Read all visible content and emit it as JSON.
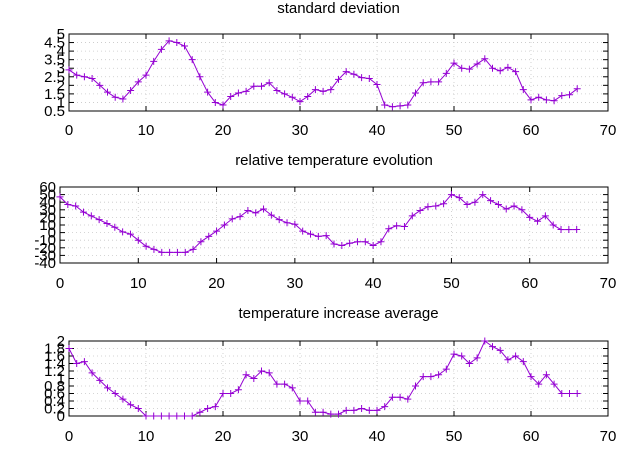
{
  "chart_data": [
    {
      "type": "line",
      "title": "standard deviation",
      "xlabel": "",
      "ylabel": "",
      "xlim": [
        0,
        70
      ],
      "ylim": [
        0.5,
        5
      ],
      "xticks": [
        0,
        10,
        20,
        30,
        40,
        50,
        60,
        70
      ],
      "yticks": [
        0.5,
        1,
        1.5,
        2,
        2.5,
        3,
        3.5,
        4,
        4.5,
        5
      ],
      "grid": true,
      "marker": "plus",
      "color": "#9400d3",
      "x": [
        0,
        1,
        2,
        3,
        4,
        5,
        6,
        7,
        8,
        9,
        10,
        11,
        12,
        13,
        14,
        15,
        16,
        17,
        18,
        19,
        20,
        21,
        22,
        23,
        24,
        25,
        26,
        27,
        28,
        29,
        30,
        31,
        32,
        33,
        34,
        35,
        36,
        37,
        38,
        39,
        40,
        41,
        42,
        43,
        44,
        45,
        46,
        47,
        48,
        49,
        50,
        51,
        52,
        53,
        54,
        55,
        56,
        57,
        58,
        59,
        60,
        61,
        62,
        63,
        64,
        65,
        66
      ],
      "series": [
        {
          "values": [
            2.9,
            2.6,
            2.5,
            2.4,
            2.0,
            1.6,
            1.3,
            1.2,
            1.7,
            2.2,
            2.6,
            3.4,
            4.1,
            4.6,
            4.5,
            4.3,
            3.5,
            2.5,
            1.6,
            1.0,
            0.85,
            1.35,
            1.55,
            1.65,
            1.95,
            1.95,
            2.15,
            1.7,
            1.5,
            1.3,
            1.05,
            1.35,
            1.75,
            1.65,
            1.75,
            2.35,
            2.8,
            2.65,
            2.45,
            2.4,
            2.05,
            0.85,
            0.75,
            0.8,
            0.85,
            1.55,
            2.15,
            2.2,
            2.2,
            2.7,
            3.3,
            3.0,
            2.95,
            3.25,
            3.55,
            3.0,
            2.85,
            3.05,
            2.8,
            1.75,
            1.15,
            1.3,
            1.15,
            1.1,
            1.4,
            1.45,
            1.8
          ]
        }
      ]
    },
    {
      "type": "line",
      "title": "relative temperature evolution",
      "xlabel": "",
      "ylabel": "",
      "xlim": [
        0,
        70
      ],
      "ylim": [
        -40,
        60
      ],
      "xticks": [
        0,
        10,
        20,
        30,
        40,
        50,
        60,
        70
      ],
      "yticks": [
        -40,
        -30,
        -20,
        -10,
        0,
        10,
        20,
        30,
        40,
        50,
        60
      ],
      "grid": true,
      "marker": "plus",
      "color": "#9400d3",
      "x": [
        0,
        1,
        2,
        3,
        4,
        5,
        6,
        7,
        8,
        9,
        10,
        11,
        12,
        13,
        14,
        15,
        16,
        17,
        18,
        19,
        20,
        21,
        22,
        23,
        24,
        25,
        26,
        27,
        28,
        29,
        30,
        31,
        32,
        33,
        34,
        35,
        36,
        37,
        38,
        39,
        40,
        41,
        42,
        43,
        44,
        45,
        46,
        47,
        48,
        49,
        50,
        51,
        52,
        53,
        54,
        55,
        56,
        57,
        58,
        59,
        60,
        61,
        62,
        63,
        64,
        65,
        66
      ],
      "series": [
        {
          "values": [
            47,
            37,
            35,
            27,
            22,
            17,
            12,
            7,
            1,
            -2,
            -10,
            -18,
            -22,
            -26,
            -26,
            -26,
            -26,
            -22,
            -12,
            -5,
            2,
            10,
            18,
            21,
            29,
            26,
            31,
            23,
            17,
            13,
            11,
            2,
            -2,
            -5,
            -4,
            -15,
            -17,
            -14,
            -12,
            -12,
            -17,
            -12,
            5,
            9,
            8,
            22,
            29,
            34,
            35,
            38,
            50,
            46,
            37,
            40,
            50,
            42,
            37,
            31,
            35,
            30,
            20,
            15,
            22,
            10,
            4,
            4,
            4
          ]
        }
      ]
    },
    {
      "type": "line",
      "title": "temperature increase average",
      "xlabel": "",
      "ylabel": "",
      "xlim": [
        0,
        70
      ],
      "ylim": [
        0,
        2
      ],
      "xticks": [
        0,
        10,
        20,
        30,
        40,
        50,
        60,
        70
      ],
      "yticks": [
        0,
        0.2,
        0.4,
        0.6,
        0.8,
        1,
        1.2,
        1.4,
        1.6,
        1.8,
        2
      ],
      "grid": true,
      "marker": "plus",
      "color": "#9400d3",
      "x": [
        0,
        1,
        2,
        3,
        4,
        5,
        6,
        7,
        8,
        9,
        10,
        11,
        12,
        13,
        14,
        15,
        16,
        17,
        18,
        19,
        20,
        21,
        22,
        23,
        24,
        25,
        26,
        27,
        28,
        29,
        30,
        31,
        32,
        33,
        34,
        35,
        36,
        37,
        38,
        39,
        40,
        41,
        42,
        43,
        44,
        45,
        46,
        47,
        48,
        49,
        50,
        51,
        52,
        53,
        54,
        55,
        56,
        57,
        58,
        59,
        60,
        61,
        62,
        63,
        64,
        65,
        66
      ],
      "series": [
        {
          "values": [
            1.8,
            1.4,
            1.45,
            1.15,
            0.95,
            0.75,
            0.6,
            0.45,
            0.3,
            0.2,
            0,
            0,
            0,
            0,
            0,
            0,
            0,
            0.1,
            0.2,
            0.25,
            0.6,
            0.6,
            0.7,
            1.1,
            1.0,
            1.2,
            1.15,
            0.85,
            0.85,
            0.75,
            0.4,
            0.4,
            0.1,
            0.1,
            0.05,
            0.05,
            0.15,
            0.15,
            0.2,
            0.15,
            0.15,
            0.25,
            0.5,
            0.5,
            0.45,
            0.8,
            1.05,
            1.05,
            1.1,
            1.25,
            1.65,
            1.6,
            1.4,
            1.55,
            2.0,
            1.85,
            1.75,
            1.5,
            1.6,
            1.45,
            1.05,
            0.85,
            1.1,
            0.85,
            0.6,
            0.6,
            0.6
          ]
        }
      ]
    }
  ]
}
